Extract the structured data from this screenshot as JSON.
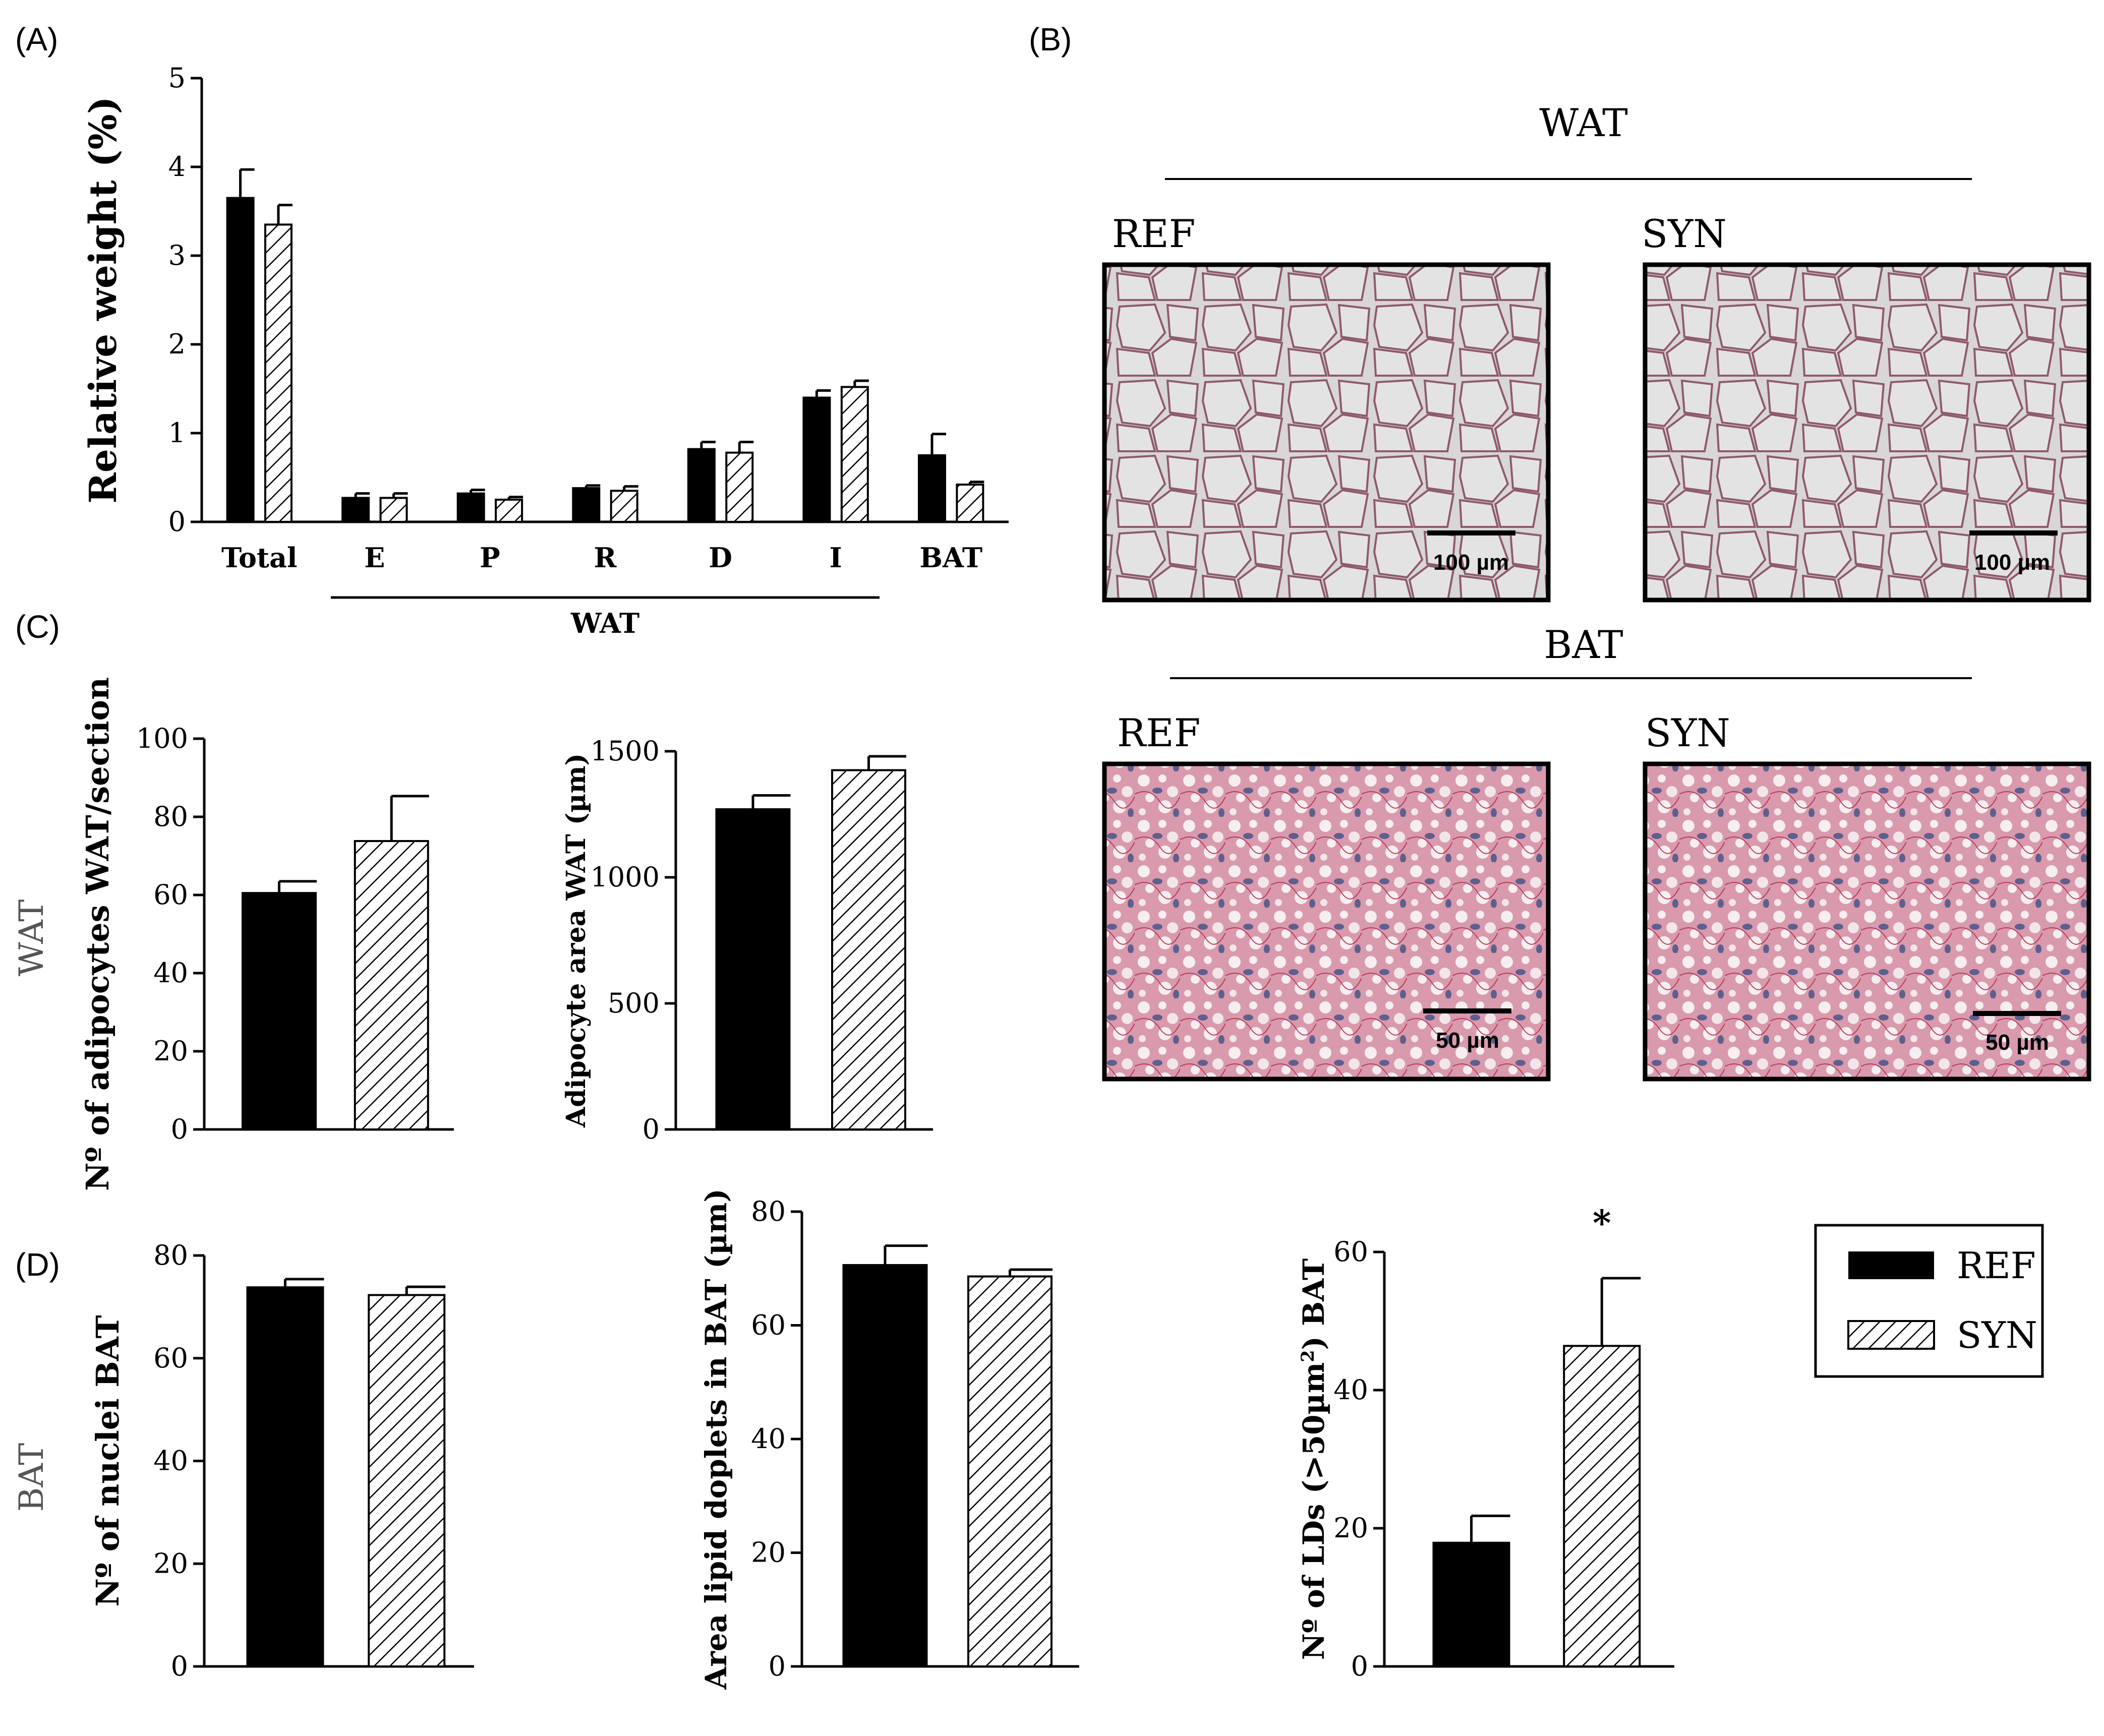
{
  "panels": {
    "A": "(A)",
    "B": "(B)",
    "C": "(C)",
    "D": "(D)"
  },
  "side_labels": {
    "wat": "WAT",
    "bat": "BAT"
  },
  "micrographs": {
    "wat_title": "WAT",
    "bat_title": "BAT",
    "items": [
      {
        "group": "WAT",
        "label": "REF",
        "scale": "100 µm",
        "tissue": "white-adipose"
      },
      {
        "group": "WAT",
        "label": "SYN",
        "scale": "100 µm",
        "tissue": "white-adipose"
      },
      {
        "group": "BAT",
        "label": "REF",
        "scale": "50 µm",
        "tissue": "brown-adipose"
      },
      {
        "group": "BAT",
        "label": "SYN",
        "scale": "50 µm",
        "tissue": "brown-adipose"
      }
    ]
  },
  "legend": {
    "items": [
      {
        "label": "REF",
        "fill": "solid-black"
      },
      {
        "label": "SYN",
        "fill": "diagonal-hatch"
      }
    ]
  },
  "chart_data": [
    {
      "id": "A",
      "type": "bar",
      "ylabel": "Relative weight (%)",
      "ylim": [
        0,
        5
      ],
      "yticks": [
        0,
        1,
        2,
        3,
        4,
        5
      ],
      "categories": [
        "Total",
        "E",
        "P",
        "R",
        "D",
        "I",
        "BAT"
      ],
      "group_bracket": {
        "label": "WAT",
        "from": "E",
        "to": "I"
      },
      "series": [
        {
          "name": "REF",
          "values": [
            3.65,
            0.27,
            0.32,
            0.38,
            0.82,
            1.4,
            0.75
          ],
          "errors": [
            0.32,
            0.05,
            0.04,
            0.03,
            0.08,
            0.08,
            0.24
          ]
        },
        {
          "name": "SYN",
          "values": [
            3.35,
            0.27,
            0.25,
            0.35,
            0.78,
            1.52,
            0.42
          ],
          "errors": [
            0.22,
            0.05,
            0.03,
            0.05,
            0.12,
            0.07,
            0.03
          ]
        }
      ]
    },
    {
      "id": "C1",
      "type": "bar",
      "ylabel": "Nº of adipocytes WAT/section",
      "ylim": [
        0,
        100
      ],
      "yticks": [
        0,
        20,
        40,
        60,
        80,
        100
      ],
      "series": [
        {
          "name": "REF",
          "values": [
            60.5
          ],
          "errors": [
            3.0
          ]
        },
        {
          "name": "SYN",
          "values": [
            73.8
          ],
          "errors": [
            11.5
          ]
        }
      ]
    },
    {
      "id": "C2",
      "type": "bar",
      "ylabel": "Adipocyte area WAT (µm)",
      "ylim": [
        0,
        1500
      ],
      "yticks": [
        0,
        500,
        1000,
        1500
      ],
      "series": [
        {
          "name": "REF",
          "values": [
            1270
          ],
          "errors": [
            55
          ]
        },
        {
          "name": "SYN",
          "values": [
            1425
          ],
          "errors": [
            55
          ]
        }
      ]
    },
    {
      "id": "D1",
      "type": "bar",
      "ylabel": "Nº of nuclei  BAT",
      "ylim": [
        0,
        80
      ],
      "yticks": [
        0,
        20,
        40,
        60,
        80
      ],
      "series": [
        {
          "name": "REF",
          "values": [
            73.8
          ],
          "errors": [
            1.6
          ]
        },
        {
          "name": "SYN",
          "values": [
            72.3
          ],
          "errors": [
            1.6
          ]
        }
      ]
    },
    {
      "id": "D2",
      "type": "bar",
      "ylabel": "Area lipid doplets in BAT (µm)",
      "ylim": [
        0,
        80
      ],
      "yticks": [
        0,
        20,
        40,
        60,
        80
      ],
      "series": [
        {
          "name": "REF",
          "values": [
            70.6
          ],
          "errors": [
            3.4
          ]
        },
        {
          "name": "SYN",
          "values": [
            68.6
          ],
          "errors": [
            1.2
          ]
        }
      ]
    },
    {
      "id": "D3",
      "type": "bar",
      "ylabel": "Nº of LDs (>50µm²) BAT",
      "ylim": [
        0,
        60
      ],
      "yticks": [
        0,
        20,
        40,
        60
      ],
      "significance": "*",
      "series": [
        {
          "name": "REF",
          "values": [
            17.9
          ],
          "errors": [
            3.9
          ]
        },
        {
          "name": "SYN",
          "values": [
            46.4
          ],
          "errors": [
            9.8
          ]
        }
      ]
    }
  ]
}
